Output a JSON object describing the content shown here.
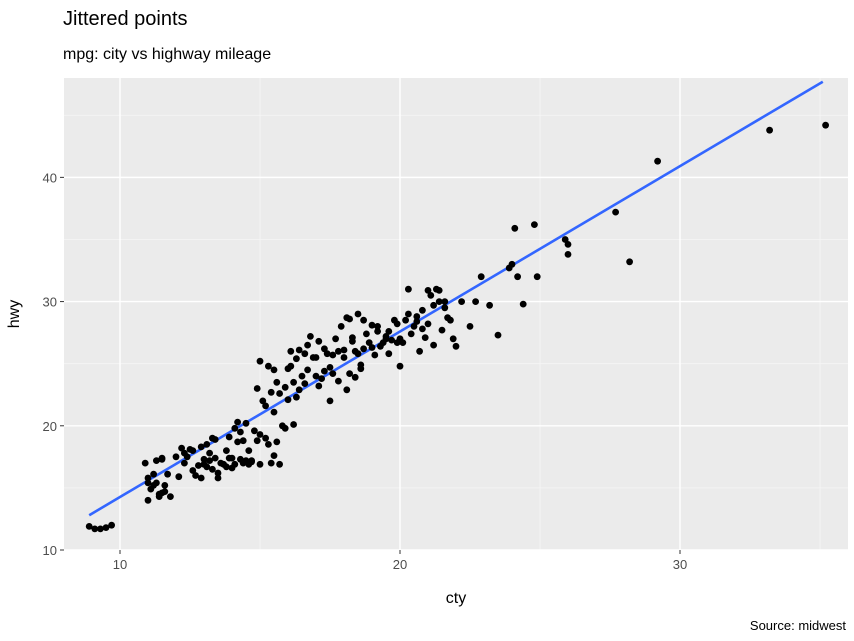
{
  "chart_data": {
    "type": "scatter",
    "title": "Jittered points",
    "subtitle": "mpg: city vs highway mileage",
    "caption": "Source: midwest",
    "xlabel": "cty",
    "ylabel": "hwy",
    "xlim": [
      8.0,
      36.0
    ],
    "ylim": [
      10.0,
      48.0
    ],
    "xticks": [
      10,
      20,
      30
    ],
    "yticks": [
      10,
      20,
      30,
      40
    ],
    "grid": true,
    "panel_background": "#ebebeb",
    "point_color": "#000000",
    "trend_line": {
      "color": "#3366ff",
      "x": [
        8.9,
        35.1
      ],
      "y": [
        12.8,
        47.7
      ]
    },
    "points": [
      [
        8.9,
        11.9
      ],
      [
        9.1,
        11.7
      ],
      [
        9.3,
        11.7
      ],
      [
        9.5,
        11.8
      ],
      [
        9.7,
        12.0
      ],
      [
        10.9,
        17.0
      ],
      [
        11.0,
        15.4
      ],
      [
        11.1,
        14.9
      ],
      [
        11.2,
        16.1
      ],
      [
        11.0,
        15.8
      ],
      [
        11.3,
        17.2
      ],
      [
        11.2,
        15.2
      ],
      [
        11.4,
        14.3
      ],
      [
        11.5,
        14.6
      ],
      [
        11.6,
        15.2
      ],
      [
        11.4,
        14.5
      ],
      [
        11.5,
        17.4
      ],
      [
        11.7,
        16.1
      ],
      [
        11.3,
        15.4
      ],
      [
        11.6,
        14.7
      ],
      [
        11.0,
        14.0
      ],
      [
        11.8,
        14.3
      ],
      [
        11.5,
        17.3
      ],
      [
        12.1,
        15.9
      ],
      [
        12.3,
        17.8
      ],
      [
        12.0,
        17.5
      ],
      [
        12.4,
        17.5
      ],
      [
        12.2,
        18.2
      ],
      [
        12.6,
        18.0
      ],
      [
        12.3,
        17.0
      ],
      [
        12.7,
        16.0
      ],
      [
        12.5,
        18.1
      ],
      [
        12.9,
        18.3
      ],
      [
        12.8,
        16.8
      ],
      [
        12.6,
        16.4
      ],
      [
        12.9,
        15.8
      ],
      [
        13.0,
        17.3
      ],
      [
        13.1,
        16.7
      ],
      [
        13.2,
        17.2
      ],
      [
        13.0,
        16.9
      ],
      [
        13.3,
        16.5
      ],
      [
        13.4,
        17.4
      ],
      [
        13.2,
        17.8
      ],
      [
        13.5,
        16.2
      ],
      [
        13.1,
        18.5
      ],
      [
        13.3,
        19.0
      ],
      [
        13.6,
        17.0
      ],
      [
        13.7,
        16.9
      ],
      [
        13.8,
        18.0
      ],
      [
        13.9,
        17.4
      ],
      [
        13.5,
        15.8
      ],
      [
        13.9,
        19.1
      ],
      [
        13.8,
        16.7
      ],
      [
        13.4,
        18.9
      ],
      [
        14.0,
        17.4
      ],
      [
        14.1,
        19.8
      ],
      [
        14.2,
        18.7
      ],
      [
        14.0,
        16.6
      ],
      [
        14.3,
        17.3
      ],
      [
        14.1,
        16.9
      ],
      [
        14.4,
        17.0
      ],
      [
        14.2,
        20.3
      ],
      [
        14.5,
        17.2
      ],
      [
        14.3,
        19.5
      ],
      [
        14.6,
        16.9
      ],
      [
        14.4,
        18.8
      ],
      [
        14.7,
        17.2
      ],
      [
        14.5,
        20.2
      ],
      [
        14.8,
        19.6
      ],
      [
        14.6,
        18.0
      ],
      [
        14.9,
        18.8
      ],
      [
        14.7,
        17.1
      ],
      [
        14.9,
        23.0
      ],
      [
        15.0,
        16.9
      ],
      [
        15.0,
        25.2
      ],
      [
        15.1,
        22.0
      ],
      [
        15.2,
        21.6
      ],
      [
        15.0,
        19.3
      ],
      [
        15.3,
        24.8
      ],
      [
        15.4,
        22.7
      ],
      [
        15.5,
        24.5
      ],
      [
        15.3,
        18.5
      ],
      [
        15.6,
        23.5
      ],
      [
        15.4,
        17.0
      ],
      [
        15.5,
        21.1
      ],
      [
        15.2,
        19.0
      ],
      [
        15.7,
        16.9
      ],
      [
        15.6,
        18.7
      ],
      [
        15.8,
        20.0
      ],
      [
        15.9,
        23.1
      ],
      [
        15.7,
        22.6
      ],
      [
        15.9,
        19.8
      ],
      [
        15.5,
        17.6
      ],
      [
        16.0,
        24.6
      ],
      [
        16.1,
        26.0
      ],
      [
        16.2,
        23.5
      ],
      [
        16.3,
        25.4
      ],
      [
        16.0,
        22.1
      ],
      [
        16.4,
        26.1
      ],
      [
        16.1,
        24.8
      ],
      [
        16.5,
        24.0
      ],
      [
        16.3,
        22.3
      ],
      [
        16.2,
        20.1
      ],
      [
        16.6,
        25.8
      ],
      [
        16.7,
        24.5
      ],
      [
        16.8,
        27.2
      ],
      [
        16.6,
        23.4
      ],
      [
        16.9,
        25.5
      ],
      [
        16.4,
        22.9
      ],
      [
        16.7,
        26.5
      ],
      [
        17.0,
        24.0
      ],
      [
        17.1,
        26.8
      ],
      [
        17.2,
        23.8
      ],
      [
        17.0,
        25.5
      ],
      [
        17.3,
        24.4
      ],
      [
        17.1,
        23.2
      ],
      [
        17.4,
        25.8
      ],
      [
        17.5,
        22.0
      ],
      [
        17.3,
        26.2
      ],
      [
        17.6,
        24.2
      ],
      [
        17.7,
        27.0
      ],
      [
        17.5,
        24.7
      ],
      [
        17.8,
        26.0
      ],
      [
        17.9,
        28.0
      ],
      [
        17.6,
        25.7
      ],
      [
        17.8,
        23.6
      ],
      [
        18.0,
        26.1
      ],
      [
        18.1,
        28.7
      ],
      [
        18.2,
        24.2
      ],
      [
        18.0,
        25.5
      ],
      [
        18.3,
        27.1
      ],
      [
        18.1,
        22.9
      ],
      [
        18.4,
        26.0
      ],
      [
        18.5,
        25.8
      ],
      [
        18.2,
        28.6
      ],
      [
        18.6,
        24.6
      ],
      [
        18.4,
        23.9
      ],
      [
        18.7,
        26.2
      ],
      [
        18.5,
        29.0
      ],
      [
        18.8,
        27.4
      ],
      [
        18.6,
        24.9
      ],
      [
        18.9,
        26.7
      ],
      [
        18.7,
        28.5
      ],
      [
        18.3,
        26.8
      ],
      [
        19.0,
        26.3
      ],
      [
        19.1,
        25.7
      ],
      [
        19.2,
        27.6
      ],
      [
        19.0,
        28.1
      ],
      [
        19.3,
        26.4
      ],
      [
        19.4,
        26.7
      ],
      [
        19.5,
        27.2
      ],
      [
        19.2,
        28.0
      ],
      [
        19.6,
        25.8
      ],
      [
        19.7,
        26.9
      ],
      [
        19.8,
        28.5
      ],
      [
        19.5,
        27.0
      ],
      [
        19.9,
        26.7
      ],
      [
        19.6,
        27.6
      ],
      [
        19.9,
        28.2
      ],
      [
        20.0,
        24.8
      ],
      [
        20.1,
        26.7
      ],
      [
        20.2,
        28.5
      ],
      [
        20.3,
        31.0
      ],
      [
        20.0,
        27.0
      ],
      [
        20.4,
        27.4
      ],
      [
        20.5,
        28.0
      ],
      [
        20.6,
        28.4
      ],
      [
        20.3,
        29.0
      ],
      [
        20.7,
        26.0
      ],
      [
        20.8,
        27.8
      ],
      [
        20.6,
        28.8
      ],
      [
        20.9,
        27.1
      ],
      [
        20.8,
        29.3
      ],
      [
        21.0,
        30.9
      ],
      [
        21.1,
        30.5
      ],
      [
        21.2,
        26.5
      ],
      [
        21.0,
        28.2
      ],
      [
        21.3,
        31.0
      ],
      [
        21.4,
        30.0
      ],
      [
        21.2,
        29.7
      ],
      [
        21.5,
        27.7
      ],
      [
        21.6,
        29.5
      ],
      [
        21.4,
        30.9
      ],
      [
        21.7,
        28.7
      ],
      [
        21.8,
        28.5
      ],
      [
        21.6,
        30.0
      ],
      [
        21.9,
        27.0
      ],
      [
        22.0,
        26.4
      ],
      [
        22.2,
        30.0
      ],
      [
        22.5,
        28.0
      ],
      [
        22.7,
        30.0
      ],
      [
        22.9,
        32.0
      ],
      [
        23.2,
        29.7
      ],
      [
        23.5,
        27.3
      ],
      [
        23.9,
        32.7
      ],
      [
        24.1,
        35.9
      ],
      [
        24.2,
        32.0
      ],
      [
        24.4,
        29.8
      ],
      [
        24.8,
        36.2
      ],
      [
        24.9,
        32.0
      ],
      [
        24.0,
        33.0
      ],
      [
        25.9,
        35.0
      ],
      [
        26.0,
        33.8
      ],
      [
        26.0,
        34.6
      ],
      [
        27.7,
        37.2
      ],
      [
        28.2,
        33.2
      ],
      [
        29.2,
        41.3
      ],
      [
        33.2,
        43.8
      ],
      [
        35.2,
        44.2
      ]
    ]
  }
}
